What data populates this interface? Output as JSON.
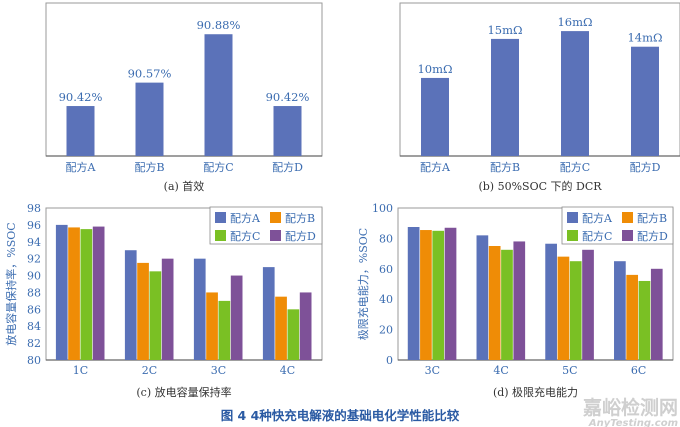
{
  "figure_caption": "图 4  4种快充电解液的基础电化学性能比较",
  "watermark": {
    "line1": "嘉峪检测网",
    "line2": "AnyTesting.com"
  },
  "colors": {
    "A": "#5b72b9",
    "B": "#ef8c06",
    "C": "#7ac024",
    "D": "#7e5198",
    "text": "#3b6cb0"
  },
  "chart_data": [
    {
      "type": "bar",
      "caption": "(a)  首效",
      "categories": [
        "配方A",
        "配方B",
        "配方C",
        "配方D"
      ],
      "values": [
        90.42,
        90.57,
        90.88,
        90.42
      ],
      "data_labels": [
        "90.42%",
        "90.57%",
        "90.88%",
        "90.42%"
      ],
      "ylim": [
        90.1,
        91.08
      ],
      "y_axis_shown": false,
      "grid": false
    },
    {
      "type": "bar",
      "caption": "(b)  50%SOC 下的 DCR",
      "categories": [
        "配方A",
        "配方B",
        "配方C",
        "配方D"
      ],
      "values": [
        10,
        15,
        16,
        14
      ],
      "data_labels": [
        "10mΩ",
        "15mΩ",
        "16mΩ",
        "14mΩ"
      ],
      "ylim": [
        0,
        19.6
      ],
      "y_axis_shown": false,
      "grid": false
    },
    {
      "type": "bar",
      "caption": "(c)  放电容量保持率",
      "ylabel": "放电容量保持率，%SOC",
      "categories": [
        "1C",
        "2C",
        "3C",
        "4C"
      ],
      "yticks": [
        "80",
        "82",
        "84",
        "86",
        "88",
        "90",
        "92",
        "94",
        "96",
        "98"
      ],
      "ylim": [
        80,
        98
      ],
      "legend": "top-right",
      "grid": false,
      "series": [
        {
          "name": "配方A",
          "values": [
            96,
            93,
            92,
            91
          ]
        },
        {
          "name": "配方B",
          "values": [
            95.7,
            91.5,
            88,
            87.5
          ]
        },
        {
          "name": "配方C",
          "values": [
            95.5,
            90.5,
            87,
            86
          ]
        },
        {
          "name": "配方D",
          "values": [
            95.8,
            92,
            90,
            88
          ]
        }
      ]
    },
    {
      "type": "bar",
      "caption": "(d)  极限充电能力",
      "ylabel": "极限充电能力，%SOC",
      "categories": [
        "3C",
        "4C",
        "5C",
        "6C"
      ],
      "yticks": [
        "0",
        "20",
        "40",
        "60",
        "80",
        "100"
      ],
      "ylim": [
        0,
        100
      ],
      "legend": "top-right",
      "grid": false,
      "series": [
        {
          "name": "配方A",
          "values": [
            87.5,
            82,
            76.5,
            65
          ]
        },
        {
          "name": "配方B",
          "values": [
            85.5,
            75,
            68,
            56
          ]
        },
        {
          "name": "配方C",
          "values": [
            85,
            72.5,
            65,
            52
          ]
        },
        {
          "name": "配方D",
          "values": [
            87,
            78,
            72.5,
            60
          ]
        }
      ]
    }
  ]
}
